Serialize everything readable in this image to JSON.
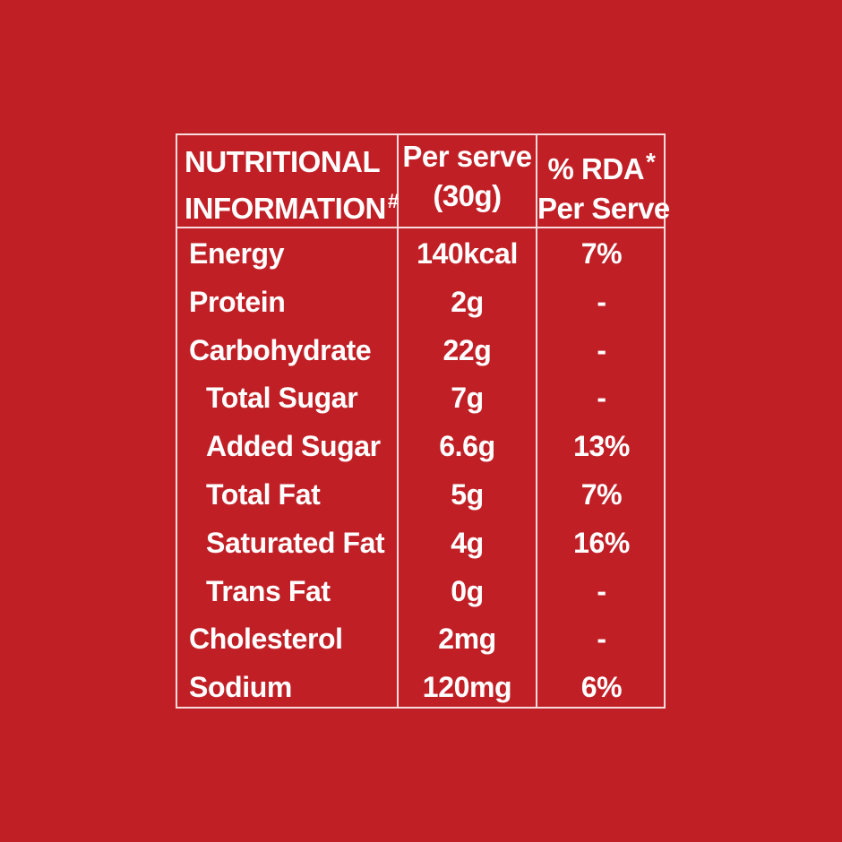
{
  "table": {
    "header": {
      "col1_line1": "NUTRITIONAL",
      "col1_line2": "INFORMATION",
      "col1_mark": "#",
      "col2_line1": "Per serve",
      "col2_line2": "(30g)",
      "col3_line1": "% RDA",
      "col3_mark": "*",
      "col3_line2": "Per Serve"
    },
    "rows": [
      {
        "name": "Energy",
        "per_serve": "140kcal",
        "rda": "7%"
      },
      {
        "name": "Protein",
        "per_serve": "2g",
        "rda": "-"
      },
      {
        "name": "Carbohydrate",
        "per_serve": "22g",
        "rda": "-"
      },
      {
        "name": "Total Sugar",
        "per_serve": "7g",
        "rda": "-"
      },
      {
        "name": "Added Sugar",
        "per_serve": "6.6g",
        "rda": "13%"
      },
      {
        "name": "Total Fat",
        "per_serve": "5g",
        "rda": "7%"
      },
      {
        "name": "Saturated Fat",
        "per_serve": "4g",
        "rda": "16%"
      },
      {
        "name": "Trans Fat",
        "per_serve": "0g",
        "rda": "-"
      },
      {
        "name": "Cholesterol",
        "per_serve": "2mg",
        "rda": "-"
      },
      {
        "name": "Sodium",
        "per_serve": "120mg",
        "rda": "6%"
      }
    ]
  },
  "colors": {
    "background": "#c11f26",
    "text": "#ffffff",
    "border": "#f6dcdc"
  }
}
